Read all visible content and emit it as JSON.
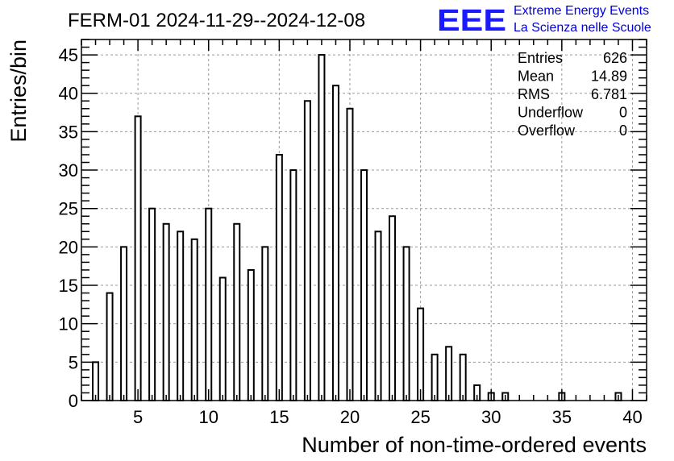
{
  "chart_data": {
    "type": "bar",
    "title": "FERM-01 2024-11-29--2024-12-08",
    "xlabel": "Number of non-time-ordered events",
    "ylabel": "Entries/bin",
    "xlim": [
      1,
      41
    ],
    "ylim": [
      0,
      47
    ],
    "grid": true,
    "x_ticks": [
      5,
      10,
      15,
      20,
      25,
      30,
      35,
      40
    ],
    "y_ticks": [
      0,
      5,
      10,
      15,
      20,
      25,
      30,
      35,
      40,
      45
    ],
    "bins": [
      {
        "x": 2,
        "value": 5
      },
      {
        "x": 3,
        "value": 14
      },
      {
        "x": 4,
        "value": 20
      },
      {
        "x": 5,
        "value": 37
      },
      {
        "x": 6,
        "value": 25
      },
      {
        "x": 7,
        "value": 23
      },
      {
        "x": 8,
        "value": 22
      },
      {
        "x": 9,
        "value": 21
      },
      {
        "x": 10,
        "value": 25
      },
      {
        "x": 11,
        "value": 16
      },
      {
        "x": 12,
        "value": 23
      },
      {
        "x": 13,
        "value": 17
      },
      {
        "x": 14,
        "value": 20
      },
      {
        "x": 15,
        "value": 32
      },
      {
        "x": 16,
        "value": 30
      },
      {
        "x": 17,
        "value": 39
      },
      {
        "x": 18,
        "value": 45
      },
      {
        "x": 19,
        "value": 41
      },
      {
        "x": 20,
        "value": 38
      },
      {
        "x": 21,
        "value": 30
      },
      {
        "x": 22,
        "value": 22
      },
      {
        "x": 23,
        "value": 24
      },
      {
        "x": 24,
        "value": 20
      },
      {
        "x": 25,
        "value": 12
      },
      {
        "x": 26,
        "value": 6
      },
      {
        "x": 27,
        "value": 7
      },
      {
        "x": 28,
        "value": 6
      },
      {
        "x": 29,
        "value": 2
      },
      {
        "x": 30,
        "value": 1
      },
      {
        "x": 31,
        "value": 1
      },
      {
        "x": 35,
        "value": 1
      },
      {
        "x": 39,
        "value": 1
      }
    ],
    "stats": [
      {
        "label": "Entries",
        "value": "626"
      },
      {
        "label": "Mean",
        "value": "14.89"
      },
      {
        "label": "RMS",
        "value": "6.781"
      },
      {
        "label": "Underflow",
        "value": "0"
      },
      {
        "label": "Overflow",
        "value": "0"
      }
    ],
    "legend_position": "top-right"
  },
  "logo": {
    "mark": "EEE",
    "line1": "Extreme Energy Events",
    "line2": "La Scienza nelle Scuole",
    "color": "#1a1aff"
  }
}
